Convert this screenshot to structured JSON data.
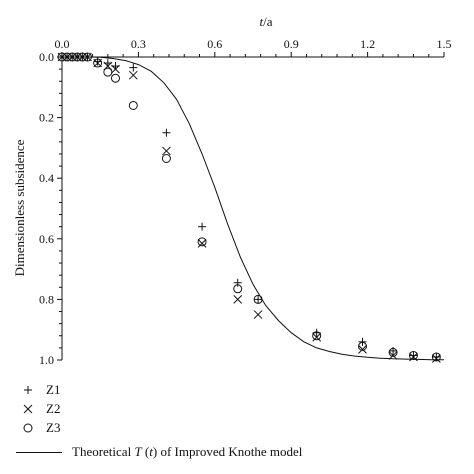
{
  "chart_data": {
    "type": "scatter",
    "xlabel": "t/a",
    "ylabel": "Dimensionless subsidence",
    "xlim": [
      0.0,
      1.5
    ],
    "ylim": [
      0.0,
      1.0
    ],
    "y_axis_inverted": true,
    "x_axis_position": "top",
    "xticks": [
      "0.0",
      "0.3",
      "0.6",
      "0.9",
      "1.2",
      "1.5"
    ],
    "yticks": [
      "0.0",
      "0.2",
      "0.4",
      "0.6",
      "0.8",
      "1.0"
    ],
    "grid": false,
    "legend_position": "bottom-left",
    "series": [
      {
        "name": "Z1",
        "marker": "plus",
        "x": [
          0.0,
          0.02,
          0.04,
          0.06,
          0.08,
          0.1,
          0.14,
          0.18,
          0.21,
          0.28,
          0.41,
          0.55,
          0.69,
          0.77,
          1.0,
          1.18,
          1.3,
          1.38,
          1.47
        ],
        "y": [
          0.0,
          0.0,
          0.0,
          0.0,
          0.0,
          0.0,
          0.015,
          0.02,
          0.03,
          0.035,
          0.25,
          0.56,
          0.745,
          0.8,
          0.91,
          0.94,
          0.97,
          0.985,
          0.99
        ]
      },
      {
        "name": "Z2",
        "marker": "cross",
        "x": [
          0.0,
          0.02,
          0.04,
          0.06,
          0.08,
          0.1,
          0.14,
          0.18,
          0.21,
          0.28,
          0.41,
          0.55,
          0.69,
          0.77,
          1.0,
          1.18,
          1.3,
          1.38,
          1.47
        ],
        "y": [
          0.0,
          0.0,
          0.0,
          0.0,
          0.0,
          0.0,
          0.02,
          0.03,
          0.04,
          0.06,
          0.31,
          0.615,
          0.8,
          0.85,
          0.925,
          0.965,
          0.985,
          0.99,
          0.995
        ]
      },
      {
        "name": "Z3",
        "marker": "circle",
        "x": [
          0.0,
          0.02,
          0.04,
          0.06,
          0.08,
          0.1,
          0.14,
          0.18,
          0.21,
          0.28,
          0.41,
          0.55,
          0.69,
          0.77,
          1.0,
          1.18,
          1.3,
          1.38,
          1.47
        ],
        "y": [
          0.0,
          0.0,
          0.0,
          0.0,
          0.0,
          0.0,
          0.02,
          0.05,
          0.07,
          0.16,
          0.335,
          0.61,
          0.765,
          0.8,
          0.92,
          0.955,
          0.975,
          0.985,
          0.99
        ]
      }
    ],
    "model_curve": {
      "name": "Theoretical T (t) of Improved Knothe model",
      "x": [
        0.0,
        0.05,
        0.1,
        0.15,
        0.2,
        0.25,
        0.3,
        0.35,
        0.4,
        0.45,
        0.5,
        0.55,
        0.6,
        0.65,
        0.7,
        0.75,
        0.8,
        0.85,
        0.9,
        0.95,
        1.0,
        1.05,
        1.1,
        1.15,
        1.2,
        1.25,
        1.3,
        1.35,
        1.4,
        1.45,
        1.5
      ],
      "y": [
        0.0,
        0.0,
        0.0,
        0.001,
        0.005,
        0.012,
        0.025,
        0.047,
        0.085,
        0.14,
        0.22,
        0.32,
        0.43,
        0.55,
        0.66,
        0.75,
        0.82,
        0.87,
        0.91,
        0.94,
        0.96,
        0.972,
        0.981,
        0.987,
        0.991,
        0.994,
        0.996,
        0.997,
        0.998,
        0.999,
        0.999
      ]
    }
  },
  "legend": {
    "z1": "Z1",
    "z2": "Z2",
    "z3": "Z3",
    "curve_prefix": "Theoretical ",
    "curve_symbol": "T",
    "curve_mid": " (",
    "curve_var": "t",
    "curve_suffix": ") of Improved Knothe model"
  },
  "axis_title_x": {
    "var": "t",
    "unit": "/a"
  },
  "axis_title_y": "Dimensionless subsidence"
}
